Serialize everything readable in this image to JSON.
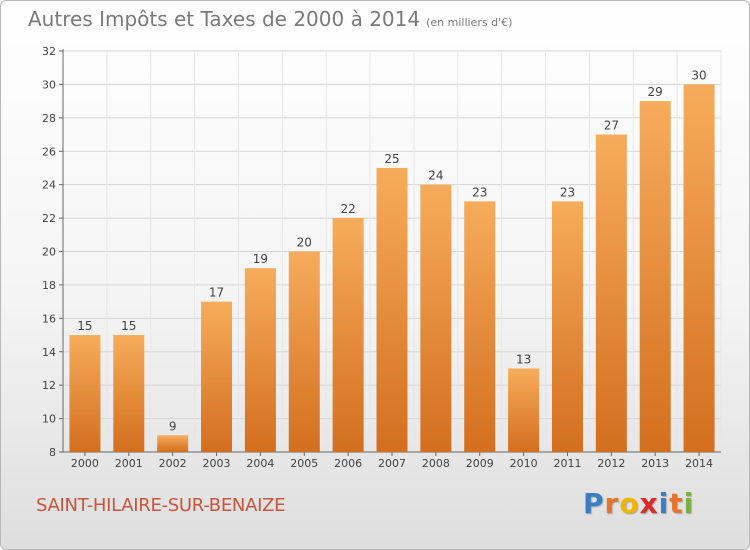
{
  "title": {
    "main": "Autres Impôts et Taxes de 2000 à 2014",
    "sub": "(en milliers d'€)"
  },
  "commune": "SAINT-HILAIRE-SUR-BENAIZE",
  "logo": {
    "letters": [
      "P",
      "r",
      "o",
      "x",
      "i",
      "t",
      "i"
    ],
    "colors": [
      "#3b7dc4",
      "#e8732a",
      "#f0b400",
      "#d92a2a",
      "#3b7dc4",
      "#e8732a",
      "#7ab23c"
    ]
  },
  "colors": {
    "bar_light": "#f6ac5c",
    "bar_dark": "#d36f1f",
    "grid": "#d6d6d6",
    "title": "#7a7a7a",
    "commune": "#c8553c"
  },
  "chart_data": {
    "type": "bar",
    "categories": [
      "2000",
      "2001",
      "2002",
      "2003",
      "2004",
      "2005",
      "2006",
      "2007",
      "2008",
      "2009",
      "2010",
      "2011",
      "2012",
      "2013",
      "2014"
    ],
    "values": [
      15,
      15,
      9,
      17,
      19,
      20,
      22,
      25,
      24,
      23,
      13,
      23,
      27,
      29,
      30
    ],
    "title": "Autres Impôts et Taxes de 2000 à 2014",
    "subtitle": "(en milliers d'€)",
    "xlabel": "",
    "ylabel": "",
    "ylim": [
      8,
      32
    ],
    "yticks": [
      8,
      10,
      12,
      14,
      16,
      18,
      20,
      22,
      24,
      26,
      28,
      30,
      32
    ],
    "grid": true,
    "data_labels": true
  }
}
